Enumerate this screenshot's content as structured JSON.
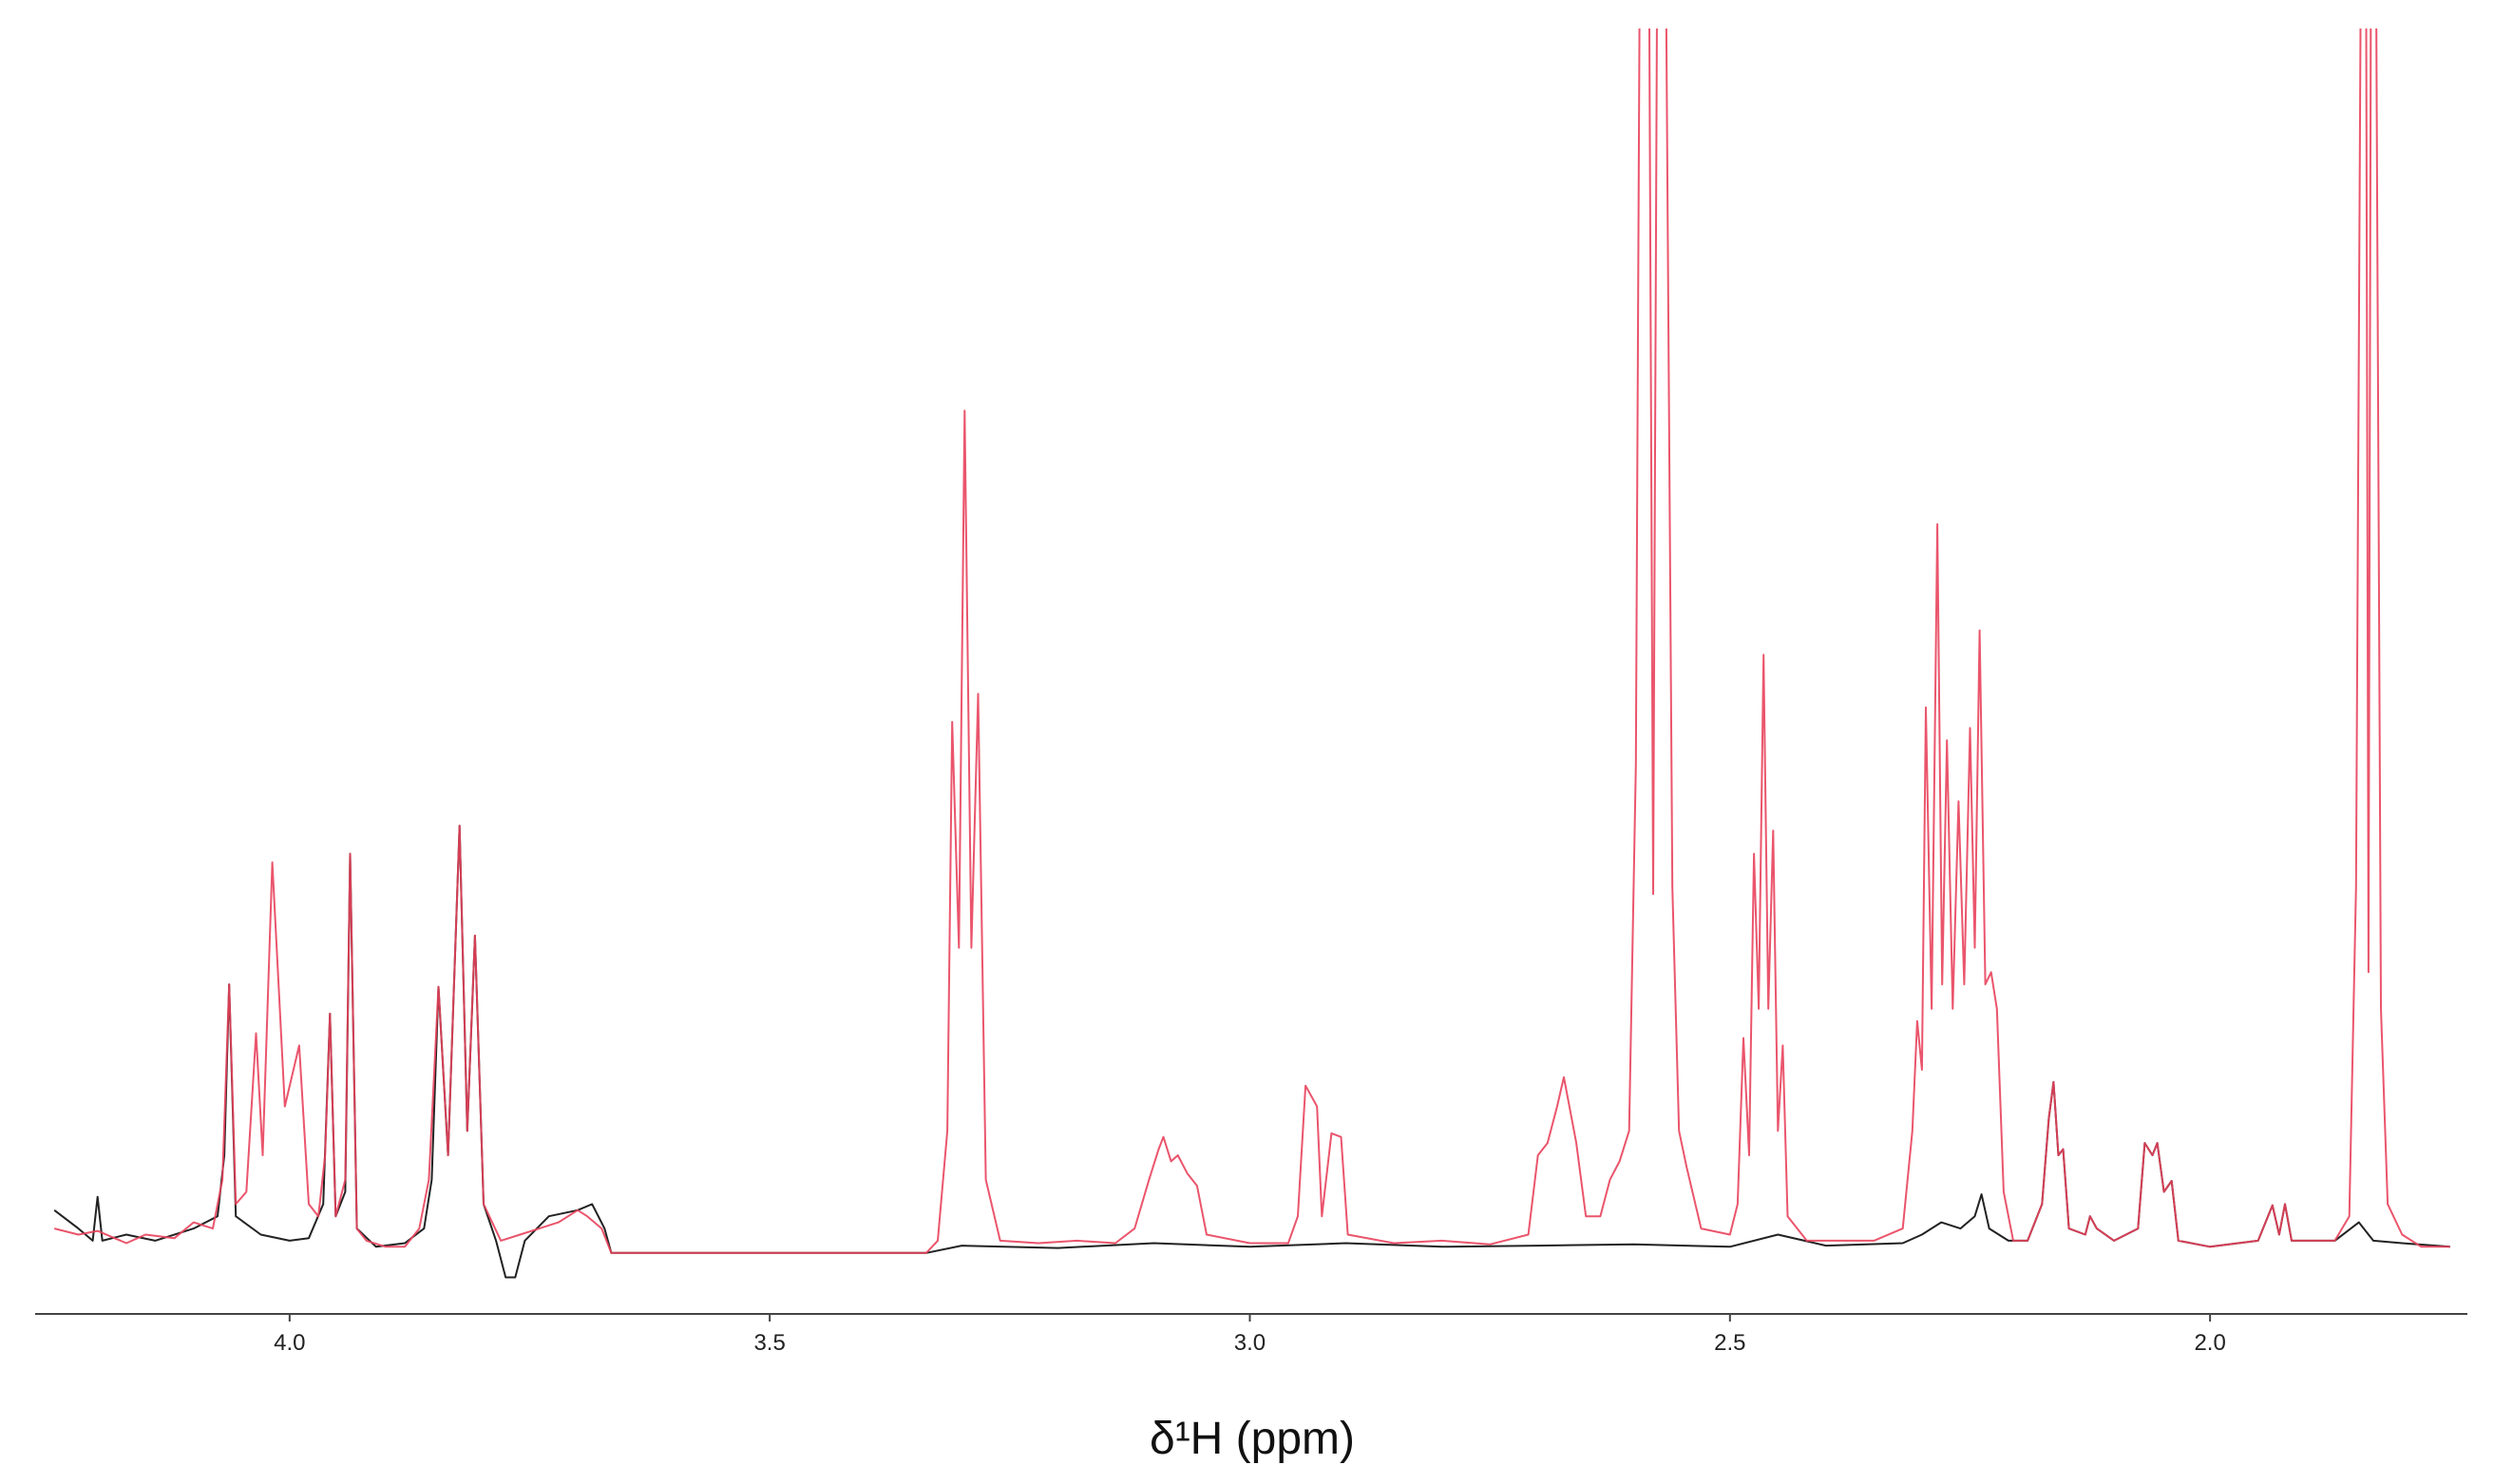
{
  "chart_data": {
    "type": "line",
    "x_label": "δ¹H (ppm)",
    "xlim": [
      4.265,
      1.732
    ],
    "ylim": [
      -5,
      100
    ],
    "xticks": [
      {
        "value": 4,
        "label": "4.0"
      },
      3.5,
      {
        "value": 3,
        "label": "3.0"
      },
      2.5,
      {
        "value": 2,
        "label": "2.0"
      }
    ],
    "series": [
      {
        "color": "#222222",
        "x": [
          4.245,
          4.22,
          4.205,
          4.2,
          4.195,
          4.17,
          4.14,
          4.1,
          4.075,
          4.068,
          4.063,
          4.056,
          4.03,
          4.0,
          3.98,
          3.965,
          3.958,
          3.952,
          3.942,
          3.937,
          3.93,
          3.91,
          3.88,
          3.86,
          3.852,
          3.845,
          3.835,
          3.823,
          3.815,
          3.807,
          3.798,
          3.785,
          3.775,
          3.765,
          3.755,
          3.73,
          3.7,
          3.685,
          3.672,
          3.665,
          3.337,
          3.3,
          3.2,
          3.1,
          3.0,
          2.9,
          2.8,
          2.7,
          2.6,
          2.5,
          2.45,
          2.4,
          2.32,
          2.3,
          2.28,
          2.26,
          2.245,
          2.238,
          2.23,
          2.21,
          2.19,
          2.175,
          2.168,
          2.163,
          2.158,
          2.153,
          2.147,
          2.13,
          2.125,
          2.118,
          2.1,
          2.075,
          2.068,
          2.06,
          2.055,
          2.048,
          2.04,
          2.033,
          2.0,
          1.95,
          1.935,
          1.928,
          1.922,
          1.915,
          1.87,
          1.845,
          1.83,
          1.8,
          1.75
        ],
        "values": [
          3.5,
          2,
          1,
          4.6,
          1,
          1.5,
          1,
          2,
          3,
          8,
          22,
          3,
          1.5,
          1,
          1.2,
          4,
          19.6,
          3,
          5,
          32.7,
          2,
          0.5,
          0.8,
          2,
          6,
          21.8,
          8,
          35,
          10,
          26,
          4,
          1,
          -2,
          -2,
          1,
          3,
          3.5,
          4,
          2,
          0,
          0,
          0.6,
          0.4,
          0.8,
          0.5,
          0.8,
          0.5,
          0.6,
          0.7,
          0.5,
          1.5,
          0.6,
          0.8,
          1.5,
          2.5,
          2,
          3,
          4.8,
          2,
          1,
          1,
          4,
          11,
          14,
          8,
          8.5,
          2,
          1.5,
          3,
          2,
          1,
          2,
          9,
          8,
          9,
          5,
          5.9,
          1,
          0.5,
          1,
          3.9,
          1.5,
          4,
          1,
          1,
          2.5,
          1,
          0.8,
          0.5
        ]
      },
      {
        "color": "#e8435c",
        "x": [
          4.245,
          4.22,
          4.2,
          4.17,
          4.15,
          4.12,
          4.1,
          4.08,
          4.07,
          4.063,
          4.056,
          4.045,
          4.035,
          4.028,
          4.018,
          4.005,
          3.99,
          3.98,
          3.97,
          3.963,
          3.958,
          3.952,
          3.942,
          3.937,
          3.93,
          3.92,
          3.9,
          3.88,
          3.865,
          3.855,
          3.845,
          3.835,
          3.823,
          3.815,
          3.807,
          3.798,
          3.78,
          3.76,
          3.74,
          3.72,
          3.7,
          3.69,
          3.675,
          3.665,
          3.337,
          3.325,
          3.315,
          3.31,
          3.303,
          3.297,
          3.29,
          3.283,
          3.275,
          3.26,
          3.22,
          3.18,
          3.14,
          3.12,
          3.105,
          3.095,
          3.09,
          3.082,
          3.075,
          3.065,
          3.055,
          3.045,
          3.0,
          2.96,
          2.95,
          2.942,
          2.93,
          2.925,
          2.915,
          2.905,
          2.898,
          2.85,
          2.8,
          2.75,
          2.71,
          2.7,
          2.69,
          2.68,
          2.673,
          2.66,
          2.65,
          2.635,
          2.625,
          2.615,
          2.605,
          2.598,
          2.593,
          2.585,
          2.58,
          2.575,
          2.568,
          2.56,
          2.553,
          2.545,
          2.53,
          2.5,
          2.492,
          2.486,
          2.48,
          2.475,
          2.47,
          2.465,
          2.46,
          2.455,
          2.45,
          2.445,
          2.44,
          2.42,
          2.35,
          2.32,
          2.31,
          2.305,
          2.3,
          2.296,
          2.29,
          2.284,
          2.279,
          2.274,
          2.268,
          2.262,
          2.256,
          2.25,
          2.245,
          2.24,
          2.234,
          2.228,
          2.222,
          2.215,
          2.205,
          2.19,
          2.175,
          2.168,
          2.163,
          2.158,
          2.153,
          2.147,
          2.13,
          2.125,
          2.118,
          2.1,
          2.075,
          2.068,
          2.06,
          2.055,
          2.048,
          2.04,
          2.033,
          2.0,
          1.95,
          1.935,
          1.928,
          1.922,
          1.915,
          1.87,
          1.855,
          1.848,
          1.842,
          1.838,
          1.835,
          1.832,
          1.828,
          1.822,
          1.815,
          1.8,
          1.78,
          1.75
        ],
        "values": [
          2,
          1.5,
          1.8,
          0.8,
          1.5,
          1.2,
          2.5,
          2,
          6,
          22,
          4,
          5,
          18,
          8,
          32,
          12,
          17,
          4,
          3,
          8,
          19.6,
          3,
          6,
          32.7,
          2,
          1,
          0.5,
          0.5,
          2,
          6,
          21.8,
          8,
          35,
          10,
          26,
          4,
          1,
          1.5,
          2,
          2.5,
          3.5,
          3,
          2,
          0,
          0,
          1,
          10,
          43.5,
          25,
          69,
          25,
          45.8,
          6,
          1,
          0.8,
          1,
          0.8,
          2,
          6,
          8.5,
          9.5,
          7.5,
          8,
          6.5,
          5.5,
          1.5,
          0.8,
          0.8,
          3,
          13.7,
          12,
          3,
          9.8,
          9.5,
          1.5,
          0.8,
          1,
          0.7,
          1.5,
          8,
          9,
          12,
          14.4,
          9,
          3,
          3,
          6,
          7.5,
          10,
          40,
          120,
          120,
          29.4,
          120,
          120,
          30,
          10,
          7,
          2,
          1.5,
          4,
          17.6,
          8,
          32.7,
          20,
          49,
          20,
          34.6,
          10,
          17,
          3,
          1,
          1,
          2,
          10,
          19,
          15,
          44.7,
          20,
          59.7,
          22,
          42,
          20,
          37,
          22,
          43,
          25,
          51,
          22,
          23,
          20,
          5,
          1,
          1,
          4,
          11,
          14,
          8,
          8.5,
          2,
          1.5,
          3,
          2,
          1,
          2,
          9,
          8,
          9,
          5,
          5.9,
          1,
          0.5,
          1,
          3.9,
          1.5,
          4,
          1,
          1,
          3,
          30,
          120,
          120,
          23,
          120,
          120,
          20,
          4,
          1.5,
          0.5,
          0.5
        ]
      }
    ]
  }
}
